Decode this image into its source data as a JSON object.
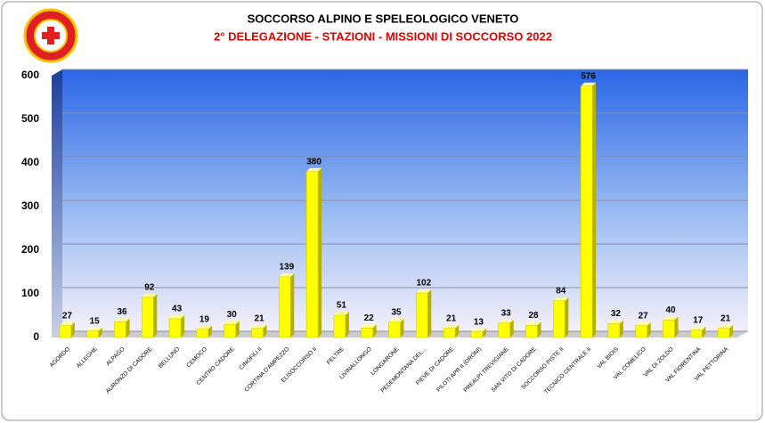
{
  "chart_data": {
    "type": "bar",
    "title": "SOCCORSO ALPINO E SPELEOLOGICO  VENETO",
    "subtitle": "2° DELEGAZIONE - STAZIONI -  MISSIONI DI SOCCORSO 2022",
    "categories": [
      "AGORDO",
      "ALLEGHE",
      "ALPAGO",
      "AURONZO DI CADORE",
      "BELLUNO",
      "CEMOCO",
      "CENTRO CADORE",
      "CINOFILI II",
      "CORTINA D'AMPEZZO",
      "ELISOCCORSO II",
      "FELTRE",
      "LIVINALLONGO",
      "LONGARONE",
      "PEDEMONTANA DEL...",
      "PIEVE DI CADORE",
      "PILOTI APR II (DRONI)",
      "PREALPI TREVIGIANE",
      "SAN VITO DI CADORE",
      "SOCCORSO PISTE II",
      "TECNICO CENTRALE II",
      "VAL BIOIS",
      "VAL COMELICO",
      "VAL DI ZOLDO",
      "VAL FIORENTINA",
      "VAL PETTORINA"
    ],
    "values": [
      27,
      15,
      36,
      92,
      43,
      19,
      30,
      21,
      139,
      380,
      51,
      22,
      35,
      102,
      21,
      13,
      33,
      28,
      84,
      576,
      32,
      27,
      40,
      17,
      21
    ],
    "color": "#ffff00",
    "ylim": [
      0,
      600
    ],
    "yticks": [
      0,
      100,
      200,
      300,
      400,
      500,
      600
    ],
    "grid": true
  }
}
